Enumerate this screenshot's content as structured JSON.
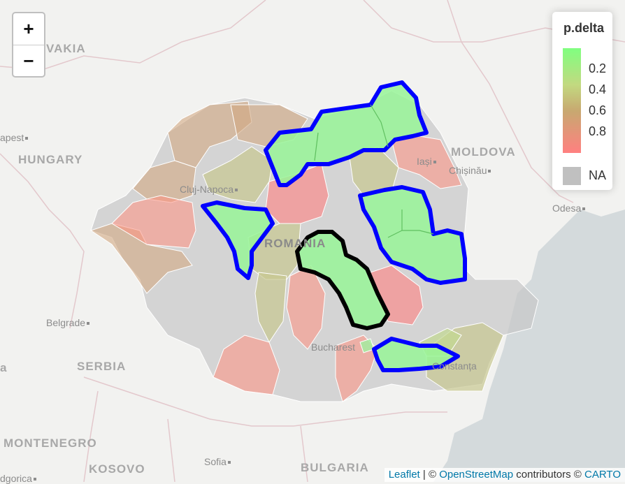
{
  "labels": {
    "slovakia": "VAKIA",
    "hungary": "HUNGARY",
    "moldova": "MOLDOVA",
    "serbia": "SERBIA",
    "romania": "ROMANIA",
    "bulgaria": "BULGARIA",
    "montenegro": "MONTENEGRO",
    "kosovo": "KOSOVO",
    "edge_a": "a",
    "budapest": "apest",
    "cluj": "Cluj-Napoca",
    "iasi": "Iași",
    "chisinau": "Chișinău",
    "odesa": "Odesa",
    "belgrade": "Belgrade",
    "bucharest": "Bucharest",
    "constanta": "Constanța",
    "sofia": "Sofia",
    "podgorica": "dgorica"
  },
  "zoom": {
    "in": "+",
    "out": "−"
  },
  "legend": {
    "title": "p.delta",
    "ticks": [
      "0.2",
      "0.4",
      "0.6",
      "0.8"
    ],
    "na": "NA",
    "colors": [
      "#80ff80",
      "#c2d980",
      "#c8a870",
      "#ff8080"
    ],
    "na_color": "#c0c0c0"
  },
  "attribution": {
    "leaflet": "Leaflet",
    "sep1": " | © ",
    "osm": "OpenStreetMap",
    "mid": " contributors © ",
    "carto": "CARTO"
  }
}
